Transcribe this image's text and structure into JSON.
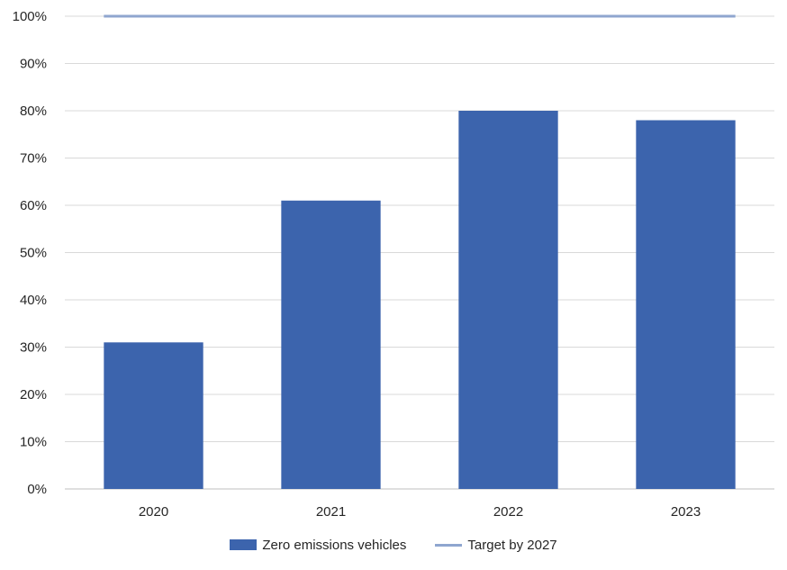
{
  "chart_data": {
    "type": "bar",
    "categories": [
      "2020",
      "2021",
      "2022",
      "2023"
    ],
    "series": [
      {
        "name": "Zero emissions vehicles",
        "type": "bar",
        "values": [
          31,
          61,
          80,
          78
        ],
        "color": "#3C64AD"
      },
      {
        "name": "Target by 2027",
        "type": "line",
        "values": [
          100,
          100,
          100,
          100
        ],
        "color": "#8FA6CF"
      }
    ],
    "y_ticks": [
      "0%",
      "10%",
      "20%",
      "30%",
      "40%",
      "50%",
      "60%",
      "70%",
      "80%",
      "90%",
      "100%"
    ],
    "ylim": [
      0,
      100
    ],
    "grid": true,
    "legend_position": "bottom"
  }
}
